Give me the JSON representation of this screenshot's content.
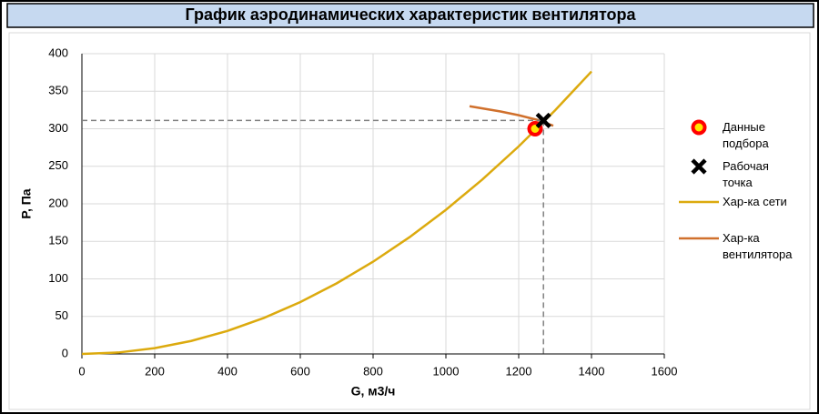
{
  "chart_data": {
    "type": "line",
    "title": "График аэродинамических характеристик вентилятора",
    "x_label": "G, м3/ч",
    "y_label": "P, Па",
    "xlim": [
      0,
      1600
    ],
    "xticks": [
      0,
      200,
      400,
      600,
      800,
      1000,
      1200,
      1400,
      1600
    ],
    "ylim": [
      0,
      400
    ],
    "yticks": [
      0,
      50,
      100,
      150,
      200,
      250,
      300,
      350,
      400
    ],
    "grid": true,
    "legend": "right",
    "series": [
      {
        "name": "Данные подбора",
        "marker": "circle",
        "color": "#ff0000",
        "x": [
          1245
        ],
        "values": [
          300
        ]
      },
      {
        "name": "Рабочая точка",
        "marker": "x",
        "color": "#000000",
        "x": [
          1268
        ],
        "values": [
          311
        ],
        "guides": true
      },
      {
        "name": "Хар-ка сети",
        "marker": "none",
        "color": "#dcaa0e",
        "x": [
          0,
          100,
          200,
          300,
          400,
          500,
          600,
          700,
          800,
          900,
          1000,
          1100,
          1200,
          1300,
          1400
        ],
        "values": [
          0,
          1.9,
          7.7,
          17.3,
          30.7,
          48,
          69.1,
          94.1,
          122.9,
          155.5,
          192,
          232.3,
          276.5,
          324.5,
          376.3
        ]
      },
      {
        "name": "Хар-ка вентилятора",
        "marker": "none",
        "color": "#d0702c",
        "x": [
          1065,
          1150,
          1200,
          1250,
          1295
        ],
        "values": [
          330,
          323,
          318,
          312,
          304
        ]
      }
    ]
  }
}
